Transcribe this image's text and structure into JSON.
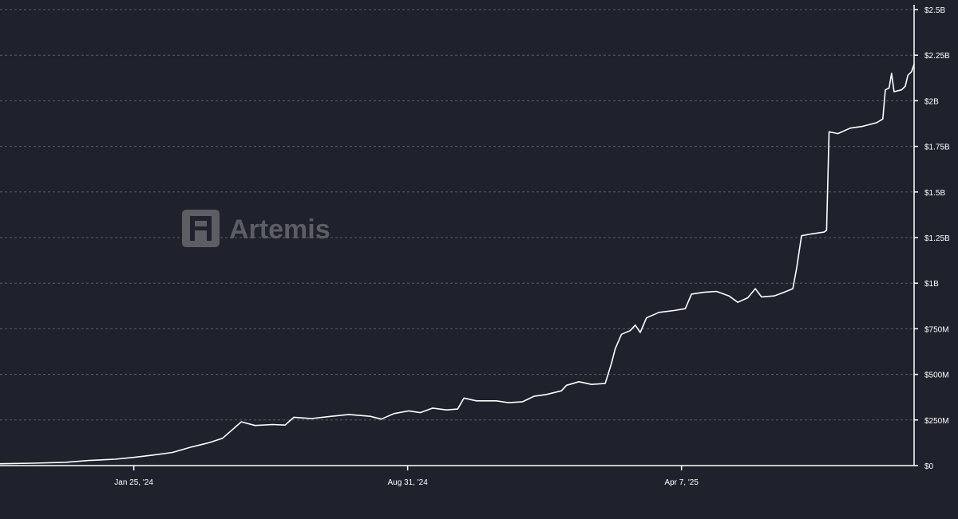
{
  "chart_data": {
    "type": "line",
    "title": "",
    "xlabel": "",
    "ylabel": "",
    "ylim": [
      0,
      2500000000
    ],
    "xlim": [
      "2023-10-10",
      "2025-10-10"
    ],
    "y_axis_position": "right",
    "grid": "horizontal",
    "line_color": "#ffffff",
    "background_color": "#1f212c",
    "grid_color": "#5a5d68",
    "y_ticks": [
      {
        "value": 0,
        "label": "$0"
      },
      {
        "value": 250000000,
        "label": "$250M"
      },
      {
        "value": 500000000,
        "label": "$500M"
      },
      {
        "value": 750000000,
        "label": "$750M"
      },
      {
        "value": 1000000000,
        "label": "$1B"
      },
      {
        "value": 1250000000,
        "label": "$1.25B"
      },
      {
        "value": 1500000000,
        "label": "$1.5B"
      },
      {
        "value": 1750000000,
        "label": "$1.75B"
      },
      {
        "value": 2000000000,
        "label": "$2B"
      },
      {
        "value": 2250000000,
        "label": "$2.25B"
      },
      {
        "value": 2500000000,
        "label": "$2.5B"
      }
    ],
    "x_ticks": [
      {
        "date": "2024-01-25",
        "label": "Jan 25, '24"
      },
      {
        "date": "2024-08-31",
        "label": "Aug 31, '24"
      },
      {
        "date": "2025-04-07",
        "label": "Apr 7, '25"
      }
    ],
    "series": [
      {
        "name": "",
        "points": [
          [
            "2023-10-10",
            10000000
          ],
          [
            "2023-11-05",
            13000000
          ],
          [
            "2023-12-01",
            18000000
          ],
          [
            "2023-12-20",
            28000000
          ],
          [
            "2024-01-10",
            35000000
          ],
          [
            "2024-01-25",
            45000000
          ],
          [
            "2024-02-10",
            58000000
          ],
          [
            "2024-02-25",
            72000000
          ],
          [
            "2024-03-10",
            100000000
          ],
          [
            "2024-03-25",
            125000000
          ],
          [
            "2024-04-05",
            150000000
          ],
          [
            "2024-04-20",
            240000000
          ],
          [
            "2024-05-01",
            220000000
          ],
          [
            "2024-05-15",
            225000000
          ],
          [
            "2024-05-25",
            222000000
          ],
          [
            "2024-06-01",
            265000000
          ],
          [
            "2024-06-15",
            258000000
          ],
          [
            "2024-07-01",
            270000000
          ],
          [
            "2024-07-15",
            280000000
          ],
          [
            "2024-08-01",
            270000000
          ],
          [
            "2024-08-10",
            255000000
          ],
          [
            "2024-08-20",
            285000000
          ],
          [
            "2024-09-01",
            300000000
          ],
          [
            "2024-09-10",
            290000000
          ],
          [
            "2024-09-20",
            315000000
          ],
          [
            "2024-10-01",
            305000000
          ],
          [
            "2024-10-10",
            310000000
          ],
          [
            "2024-10-15",
            370000000
          ],
          [
            "2024-10-25",
            355000000
          ],
          [
            "2024-11-10",
            355000000
          ],
          [
            "2024-11-20",
            345000000
          ],
          [
            "2024-12-01",
            350000000
          ],
          [
            "2024-12-10",
            380000000
          ],
          [
            "2024-12-20",
            390000000
          ],
          [
            "2025-01-01",
            410000000
          ],
          [
            "2025-01-05",
            440000000
          ],
          [
            "2025-01-15",
            460000000
          ],
          [
            "2025-01-25",
            445000000
          ],
          [
            "2025-02-05",
            450000000
          ],
          [
            "2025-02-10",
            560000000
          ],
          [
            "2025-02-13",
            640000000
          ],
          [
            "2025-02-18",
            720000000
          ],
          [
            "2025-02-25",
            740000000
          ],
          [
            "2025-03-01",
            770000000
          ],
          [
            "2025-03-05",
            730000000
          ],
          [
            "2025-03-10",
            810000000
          ],
          [
            "2025-03-20",
            840000000
          ],
          [
            "2025-04-01",
            850000000
          ],
          [
            "2025-04-10",
            860000000
          ],
          [
            "2025-04-15",
            940000000
          ],
          [
            "2025-04-25",
            950000000
          ],
          [
            "2025-05-05",
            955000000
          ],
          [
            "2025-05-15",
            930000000
          ],
          [
            "2025-05-22",
            895000000
          ],
          [
            "2025-05-30",
            920000000
          ],
          [
            "2025-06-05",
            970000000
          ],
          [
            "2025-06-10",
            925000000
          ],
          [
            "2025-06-20",
            930000000
          ],
          [
            "2025-06-28",
            950000000
          ],
          [
            "2025-07-05",
            970000000
          ],
          [
            "2025-07-08",
            1080000000
          ],
          [
            "2025-07-12",
            1260000000
          ],
          [
            "2025-07-20",
            1270000000
          ],
          [
            "2025-07-30",
            1280000000
          ],
          [
            "2025-08-01",
            1290000000
          ],
          [
            "2025-08-03",
            1830000000
          ],
          [
            "2025-08-10",
            1820000000
          ],
          [
            "2025-08-20",
            1850000000
          ],
          [
            "2025-08-30",
            1860000000
          ],
          [
            "2025-09-10",
            1880000000
          ],
          [
            "2025-09-15",
            1900000000
          ],
          [
            "2025-09-17",
            2060000000
          ],
          [
            "2025-09-20",
            2070000000
          ],
          [
            "2025-09-22",
            2150000000
          ],
          [
            "2025-09-24",
            2050000000
          ],
          [
            "2025-09-30",
            2060000000
          ],
          [
            "2025-10-03",
            2080000000
          ],
          [
            "2025-10-05",
            2140000000
          ],
          [
            "2025-10-08",
            2160000000
          ],
          [
            "2025-10-10",
            2200000000
          ]
        ]
      }
    ]
  },
  "watermark": {
    "text": "Artemis",
    "icon": "artemis-logo-icon"
  }
}
